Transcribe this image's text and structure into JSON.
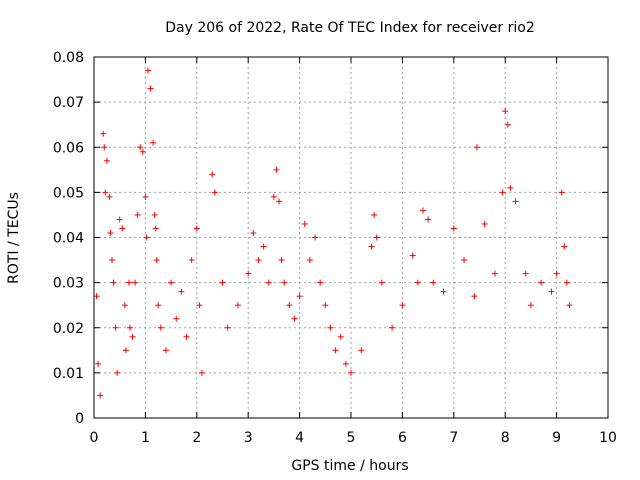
{
  "chart_data": {
    "type": "scatter",
    "title": "Day 206 of 2022, Rate Of TEC Index for receiver rio2",
    "xlabel": "GPS time / hours",
    "ylabel": "ROTI / TECUs",
    "xlim": [
      0,
      10
    ],
    "ylim": [
      0,
      0.08
    ],
    "xticks": [
      "0",
      "1",
      "2",
      "3",
      "4",
      "5",
      "6",
      "7",
      "8",
      "9",
      "10"
    ],
    "yticks": [
      "0",
      "0.01",
      "0.02",
      "0.03",
      "0.04",
      "0.05",
      "0.06",
      "0.07",
      "0.08"
    ],
    "grid": true,
    "marker": "+",
    "color": "#ff0000",
    "series": [
      {
        "name": "rio2",
        "x": [
          0.05,
          0.08,
          0.12,
          0.18,
          0.2,
          0.22,
          0.25,
          0.3,
          0.32,
          0.35,
          0.38,
          0.42,
          0.45,
          0.5,
          0.55,
          0.6,
          0.62,
          0.68,
          0.7,
          0.75,
          0.8,
          0.85,
          0.9,
          0.95,
          1.0,
          1.02,
          1.05,
          1.1,
          1.15,
          1.18,
          1.2,
          1.22,
          1.25,
          1.3,
          1.4,
          1.5,
          1.6,
          1.7,
          1.8,
          1.9,
          2.0,
          2.05,
          2.1,
          2.3,
          2.35,
          2.5,
          2.6,
          2.8,
          3.0,
          3.1,
          3.2,
          3.3,
          3.4,
          3.5,
          3.55,
          3.6,
          3.65,
          3.7,
          3.8,
          3.9,
          4.0,
          4.1,
          4.2,
          4.3,
          4.4,
          4.5,
          4.6,
          4.7,
          4.8,
          4.9,
          5.0,
          5.2,
          5.4,
          5.45,
          5.5,
          5.6,
          5.8,
          6.0,
          6.2,
          6.3,
          6.4,
          6.5,
          6.6,
          6.8,
          7.0,
          7.2,
          7.4,
          7.45,
          7.6,
          7.8,
          7.95,
          8.0,
          8.05,
          8.1,
          8.2,
          8.4,
          8.5,
          8.7,
          8.9,
          9.0,
          9.1,
          9.15,
          9.2,
          9.25
        ],
        "y": [
          0.027,
          0.012,
          0.005,
          0.063,
          0.06,
          0.05,
          0.057,
          0.049,
          0.041,
          0.035,
          0.03,
          0.02,
          0.01,
          0.044,
          0.042,
          0.025,
          0.015,
          0.03,
          0.02,
          0.018,
          0.03,
          0.045,
          0.06,
          0.059,
          0.049,
          0.04,
          0.077,
          0.073,
          0.061,
          0.045,
          0.042,
          0.035,
          0.025,
          0.02,
          0.015,
          0.03,
          0.022,
          0.028,
          0.018,
          0.035,
          0.042,
          0.025,
          0.01,
          0.054,
          0.05,
          0.03,
          0.02,
          0.025,
          0.032,
          0.041,
          0.035,
          0.038,
          0.03,
          0.049,
          0.055,
          0.048,
          0.035,
          0.03,
          0.025,
          0.022,
          0.027,
          0.043,
          0.035,
          0.04,
          0.03,
          0.025,
          0.02,
          0.015,
          0.018,
          0.012,
          0.01,
          0.015,
          0.038,
          0.045,
          0.04,
          0.03,
          0.02,
          0.025,
          0.036,
          0.03,
          0.046,
          0.044,
          0.03,
          0.028,
          0.042,
          0.035,
          0.027,
          0.06,
          0.043,
          0.032,
          0.05,
          0.068,
          0.065,
          0.051,
          0.048,
          0.032,
          0.025,
          0.03,
          0.028,
          0.032,
          0.05,
          0.038,
          0.03,
          0.025
        ]
      }
    ]
  }
}
